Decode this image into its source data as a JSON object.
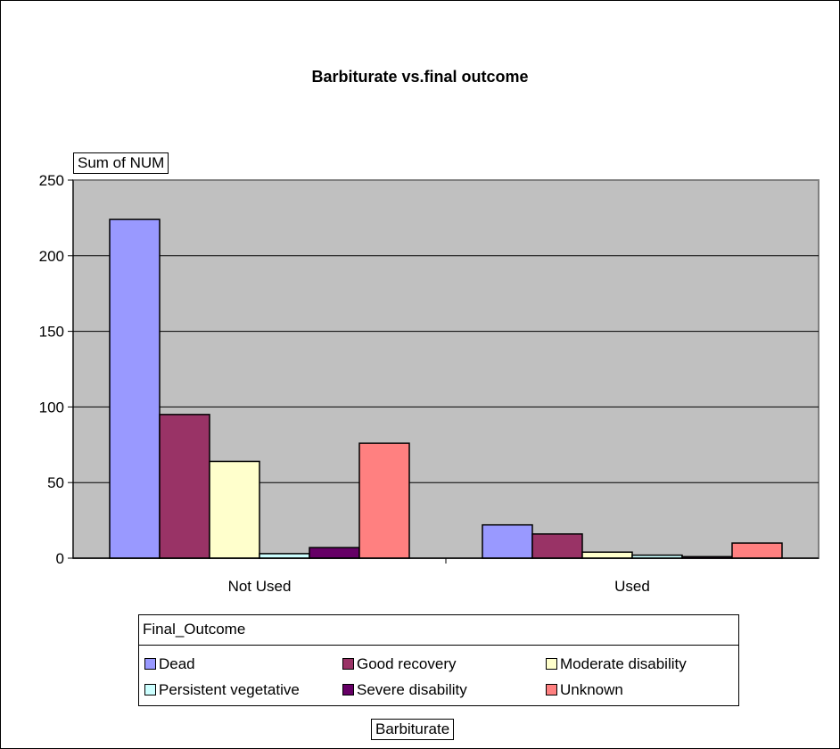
{
  "chart_data": {
    "type": "bar",
    "title": "Barbiturate vs.final outcome",
    "ylabel": "Sum of NUM",
    "xlabel": "Barbiturate",
    "categories": [
      "Not Used",
      "Used"
    ],
    "ylim": [
      0,
      250
    ],
    "yticks": [
      0,
      50,
      100,
      150,
      200,
      250
    ],
    "grid": true,
    "plot_background": "#c0c0c0",
    "legend": {
      "title": "Final_Outcome",
      "placement": "bottom"
    },
    "series": [
      {
        "name": "Dead",
        "color": "#9999ff",
        "values": [
          224,
          22
        ]
      },
      {
        "name": "Good recovery",
        "color": "#993366",
        "values": [
          95,
          16
        ]
      },
      {
        "name": "Moderate disability",
        "color": "#ffffcc",
        "values": [
          64,
          4
        ]
      },
      {
        "name": "Persistent vegetative",
        "color": "#ccffff",
        "values": [
          3,
          2
        ]
      },
      {
        "name": "Severe disability",
        "color": "#660066",
        "values": [
          7,
          1
        ]
      },
      {
        "name": "Unknown",
        "color": "#ff8080",
        "values": [
          76,
          10
        ]
      }
    ]
  }
}
